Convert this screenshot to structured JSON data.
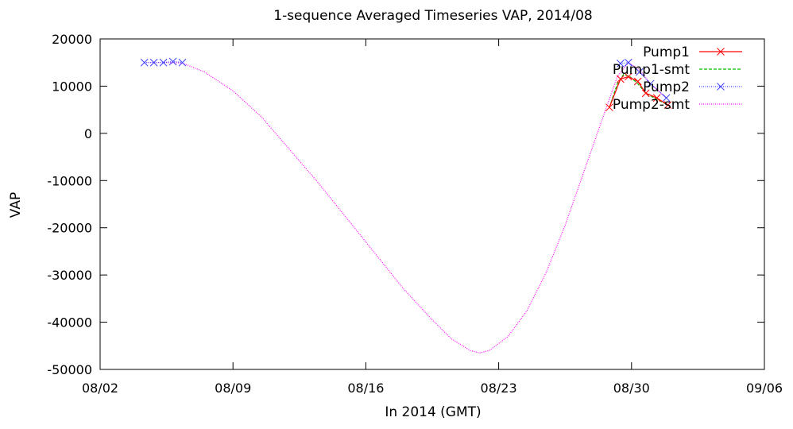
{
  "chart_data": {
    "type": "line",
    "title": "1-sequence Averaged Timeseries VAP, 2014/08",
    "xlabel": "In 2014 (GMT)",
    "ylabel": "VAP",
    "x_axis": {
      "min": "2014-08-02",
      "max": "2014-09-06",
      "ticks": [
        "08/02",
        "08/09",
        "08/16",
        "08/23",
        "08/30",
        "09/06"
      ]
    },
    "ylim": [
      -50000,
      20000
    ],
    "y_ticks": [
      "20000",
      "10000",
      "0",
      "-10000",
      "-20000",
      "-30000",
      "-40000",
      "-50000"
    ],
    "grid": false,
    "legend_position": "top-right",
    "series": [
      {
        "name": "Pump1",
        "color": "#ff0000",
        "style": "lines+points",
        "marker": "x",
        "points": [
          {
            "x": "2014-08-28T20:00",
            "y": 5500
          },
          {
            "x": "2014-08-29T10:00",
            "y": 11500
          },
          {
            "x": "2014-08-29T20:00",
            "y": 12000
          },
          {
            "x": "2014-08-30T08:00",
            "y": 11000
          },
          {
            "x": "2014-08-30T18:00",
            "y": 8500
          },
          {
            "x": "2014-08-31T08:00",
            "y": 7500
          },
          {
            "x": "2014-08-31T22:00",
            "y": 6000
          }
        ]
      },
      {
        "name": "Pump1-smt",
        "color": "#00c000",
        "style": "dashed",
        "points": [
          {
            "x": "2014-08-28T20:00",
            "y": 5500
          },
          {
            "x": "2014-08-29T06:00",
            "y": 10500
          },
          {
            "x": "2014-08-29T14:00",
            "y": 12500
          },
          {
            "x": "2014-08-29T22:00",
            "y": 12000
          },
          {
            "x": "2014-08-30T08:00",
            "y": 10500
          },
          {
            "x": "2014-08-30T18:00",
            "y": 8500
          },
          {
            "x": "2014-08-31T08:00",
            "y": 7200
          },
          {
            "x": "2014-08-31T22:00",
            "y": 6000
          }
        ]
      },
      {
        "name": "Pump2",
        "color": "#4040ff",
        "style": "dotted+points",
        "marker": "x",
        "points": [
          {
            "x": "2014-08-04T08:00",
            "y": 15000
          },
          {
            "x": "2014-08-04T20:00",
            "y": 15000
          },
          {
            "x": "2014-08-05T08:00",
            "y": 15000
          },
          {
            "x": "2014-08-05T20:00",
            "y": 15200
          },
          {
            "x": "2014-08-06T08:00",
            "y": 15000
          },
          {
            "x": "2014-08-29T10:00",
            "y": 14800
          },
          {
            "x": "2014-08-29T20:00",
            "y": 15000
          },
          {
            "x": "2014-08-30T10:00",
            "y": 13000
          },
          {
            "x": "2014-08-31T00:00",
            "y": 10500
          },
          {
            "x": "2014-08-31T20:00",
            "y": 7500
          }
        ]
      },
      {
        "name": "Pump2-smt",
        "color": "#ff00ff",
        "style": "dotted",
        "points": [
          {
            "x": "2014-08-04T08:00",
            "y": 15000
          },
          {
            "x": "2014-08-05T08:00",
            "y": 15000
          },
          {
            "x": "2014-08-06T08:00",
            "y": 14900
          },
          {
            "x": "2014-08-07T12:00",
            "y": 13000
          },
          {
            "x": "2014-08-09T00:00",
            "y": 9000
          },
          {
            "x": "2014-08-10T12:00",
            "y": 3500
          },
          {
            "x": "2014-08-12T00:00",
            "y": -3500
          },
          {
            "x": "2014-08-13T12:00",
            "y": -10500
          },
          {
            "x": "2014-08-15T00:00",
            "y": -18000
          },
          {
            "x": "2014-08-16T12:00",
            "y": -25500
          },
          {
            "x": "2014-08-18T00:00",
            "y": -33000
          },
          {
            "x": "2014-08-19T12:00",
            "y": -39500
          },
          {
            "x": "2014-08-20T12:00",
            "y": -43500
          },
          {
            "x": "2014-08-21T12:00",
            "y": -46000
          },
          {
            "x": "2014-08-22T00:00",
            "y": -46500
          },
          {
            "x": "2014-08-22T12:00",
            "y": -46000
          },
          {
            "x": "2014-08-23T12:00",
            "y": -43000
          },
          {
            "x": "2014-08-24T12:00",
            "y": -37500
          },
          {
            "x": "2014-08-25T12:00",
            "y": -29500
          },
          {
            "x": "2014-08-26T12:00",
            "y": -19500
          },
          {
            "x": "2014-08-27T12:00",
            "y": -8000
          },
          {
            "x": "2014-08-28T12:00",
            "y": 3500
          },
          {
            "x": "2014-08-29T06:00",
            "y": 12000
          },
          {
            "x": "2014-08-29T20:00",
            "y": 15000
          },
          {
            "x": "2014-08-30T10:00",
            "y": 13500
          },
          {
            "x": "2014-08-31T00:00",
            "y": 10500
          },
          {
            "x": "2014-08-31T20:00",
            "y": 7500
          }
        ]
      }
    ]
  }
}
